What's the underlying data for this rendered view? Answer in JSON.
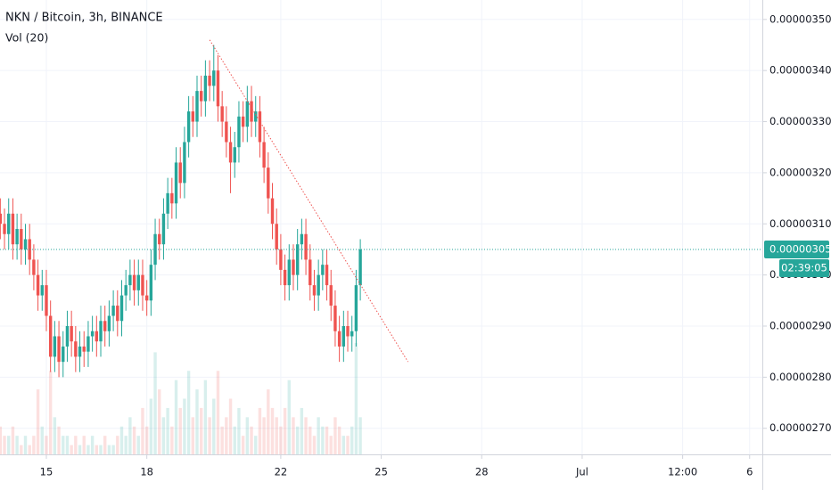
{
  "chart_data": {
    "type": "candlestick",
    "title": "NKN / Bitcoin, 3h, BINANCE",
    "volume_title": "Vol (20)",
    "up_color": "#26a69a",
    "down_color": "#ef5350",
    "x": [
      13.625,
      13.75,
      13.875,
      14,
      14.125,
      14.25,
      14.375,
      14.5,
      14.625,
      14.75,
      14.875,
      15,
      15.125,
      15.25,
      15.375,
      15.5,
      15.625,
      15.75,
      15.875,
      16,
      16.125,
      16.25,
      16.375,
      16.5,
      16.625,
      16.75,
      16.875,
      17,
      17.125,
      17.25,
      17.375,
      17.5,
      17.625,
      17.75,
      17.875,
      18,
      18.125,
      18.25,
      18.375,
      18.5,
      18.625,
      18.75,
      18.875,
      19,
      19.125,
      19.25,
      19.375,
      19.5,
      19.625,
      19.75,
      19.875,
      20,
      20.125,
      20.25,
      20.375,
      20.5,
      20.625,
      20.75,
      20.875,
      21,
      21.125,
      21.25,
      21.375,
      21.5,
      21.625,
      21.75,
      21.875,
      22,
      22.125,
      22.25,
      22.375,
      22.5,
      22.625,
      22.75,
      22.875,
      23,
      23.125,
      23.25,
      23.375,
      23.5,
      23.625,
      23.75,
      23.875,
      24,
      24.125,
      24.25,
      24.375
    ],
    "open": [
      3.12e-06,
      3.1e-06,
      3.08e-06,
      3.12e-06,
      3.06e-06,
      3.09e-06,
      3.05e-06,
      3.07e-06,
      3.03e-06,
      3e-06,
      2.96e-06,
      2.98e-06,
      2.92e-06,
      2.84e-06,
      2.88e-06,
      2.83e-06,
      2.86e-06,
      2.9e-06,
      2.87e-06,
      2.84e-06,
      2.86e-06,
      2.85e-06,
      2.88e-06,
      2.89e-06,
      2.87e-06,
      2.91e-06,
      2.89e-06,
      2.92e-06,
      2.94e-06,
      2.91e-06,
      2.96e-06,
      2.98e-06,
      3e-06,
      2.97e-06,
      3e-06,
      2.96e-06,
      2.95e-06,
      3.02e-06,
      3.08e-06,
      3.06e-06,
      3.12e-06,
      3.16e-06,
      3.14e-06,
      3.22e-06,
      3.18e-06,
      3.26e-06,
      3.32e-06,
      3.3e-06,
      3.36e-06,
      3.34e-06,
      3.39e-06,
      3.37e-06,
      3.4e-06,
      3.33e-06,
      3.3e-06,
      3.26e-06,
      3.22e-06,
      3.25e-06,
      3.31e-06,
      3.29e-06,
      3.34e-06,
      3.3e-06,
      3.32e-06,
      3.26e-06,
      3.21e-06,
      3.15e-06,
      3.1e-06,
      3.05e-06,
      3.01e-06,
      2.98e-06,
      3.03e-06,
      3e-06,
      3.06e-06,
      3.08e-06,
      3.03e-06,
      2.98e-06,
      2.96e-06,
      3e-06,
      3.02e-06,
      2.98e-06,
      2.94e-06,
      2.89e-06,
      2.86e-06,
      2.9e-06,
      2.88e-06,
      2.89e-06,
      2.98e-06
    ],
    "high": [
      3.15e-06,
      3.13e-06,
      3.15e-06,
      3.15e-06,
      3.12e-06,
      3.12e-06,
      3.1e-06,
      3.1e-06,
      3.06e-06,
      3.03e-06,
      3.01e-06,
      3.01e-06,
      2.95e-06,
      2.91e-06,
      2.91e-06,
      2.89e-06,
      2.93e-06,
      2.93e-06,
      2.9e-06,
      2.89e-06,
      2.89e-06,
      2.91e-06,
      2.92e-06,
      2.92e-06,
      2.94e-06,
      2.94e-06,
      2.95e-06,
      2.97e-06,
      2.97e-06,
      2.99e-06,
      3.01e-06,
      3.03e-06,
      3.03e-06,
      3.03e-06,
      3.03e-06,
      2.99e-06,
      3.05e-06,
      3.11e-06,
      3.11e-06,
      3.15e-06,
      3.19e-06,
      3.19e-06,
      3.25e-06,
      3.25e-06,
      3.29e-06,
      3.35e-06,
      3.35e-06,
      3.39e-06,
      3.39e-06,
      3.42e-06,
      3.42e-06,
      3.45e-06,
      3.43e-06,
      3.36e-06,
      3.33e-06,
      3.29e-06,
      3.28e-06,
      3.34e-06,
      3.34e-06,
      3.37e-06,
      3.37e-06,
      3.35e-06,
      3.35e-06,
      3.29e-06,
      3.24e-06,
      3.18e-06,
      3.13e-06,
      3.08e-06,
      3.04e-06,
      3.06e-06,
      3.06e-06,
      3.09e-06,
      3.11e-06,
      3.11e-06,
      3.06e-06,
      3.01e-06,
      3.03e-06,
      3.05e-06,
      3.05e-06,
      3.01e-06,
      2.97e-06,
      2.92e-06,
      2.93e-06,
      2.93e-06,
      2.92e-06,
      3.01e-06,
      3.07e-06
    ],
    "low": [
      3.07e-06,
      3.05e-06,
      3.05e-06,
      3.03e-06,
      3.03e-06,
      3.02e-06,
      3.02e-06,
      3e-06,
      2.97e-06,
      2.93e-06,
      2.93e-06,
      2.89e-06,
      2.81e-06,
      2.81e-06,
      2.8e-06,
      2.8e-06,
      2.83e-06,
      2.84e-06,
      2.81e-06,
      2.81e-06,
      2.82e-06,
      2.82e-06,
      2.85e-06,
      2.84e-06,
      2.84e-06,
      2.86e-06,
      2.86e-06,
      2.89e-06,
      2.88e-06,
      2.88e-06,
      2.93e-06,
      2.95e-06,
      2.94e-06,
      2.94e-06,
      2.93e-06,
      2.92e-06,
      2.92e-06,
      2.99e-06,
      3.03e-06,
      3.03e-06,
      3.09e-06,
      3.11e-06,
      3.11e-06,
      3.15e-06,
      3.15e-06,
      3.23e-06,
      3.27e-06,
      3.27e-06,
      3.31e-06,
      3.31e-06,
      3.34e-06,
      3.34e-06,
      3.3e-06,
      3.27e-06,
      3.23e-06,
      3.16e-06,
      3.19e-06,
      3.22e-06,
      3.26e-06,
      3.26e-06,
      3.27e-06,
      3.27e-06,
      3.23e-06,
      3.18e-06,
      3.12e-06,
      3.07e-06,
      3.02e-06,
      2.98e-06,
      2.95e-06,
      2.95e-06,
      2.97e-06,
      2.97e-06,
      3.03e-06,
      3e-06,
      2.95e-06,
      2.93e-06,
      2.93e-06,
      2.97e-06,
      2.95e-06,
      2.91e-06,
      2.86e-06,
      2.83e-06,
      2.83e-06,
      2.85e-06,
      2.85e-06,
      2.86e-06,
      2.95e-06
    ],
    "close": [
      3.1e-06,
      3.08e-06,
      3.12e-06,
      3.06e-06,
      3.09e-06,
      3.05e-06,
      3.07e-06,
      3.03e-06,
      3e-06,
      2.96e-06,
      2.98e-06,
      2.92e-06,
      2.84e-06,
      2.88e-06,
      2.83e-06,
      2.86e-06,
      2.9e-06,
      2.87e-06,
      2.84e-06,
      2.86e-06,
      2.85e-06,
      2.88e-06,
      2.89e-06,
      2.87e-06,
      2.91e-06,
      2.89e-06,
      2.92e-06,
      2.94e-06,
      2.91e-06,
      2.96e-06,
      2.98e-06,
      3e-06,
      2.97e-06,
      3e-06,
      2.96e-06,
      2.95e-06,
      3.02e-06,
      3.08e-06,
      3.06e-06,
      3.12e-06,
      3.16e-06,
      3.14e-06,
      3.22e-06,
      3.18e-06,
      3.26e-06,
      3.32e-06,
      3.3e-06,
      3.36e-06,
      3.34e-06,
      3.39e-06,
      3.37e-06,
      3.4e-06,
      3.33e-06,
      3.3e-06,
      3.26e-06,
      3.22e-06,
      3.25e-06,
      3.31e-06,
      3.29e-06,
      3.34e-06,
      3.3e-06,
      3.32e-06,
      3.26e-06,
      3.21e-06,
      3.15e-06,
      3.1e-06,
      3.05e-06,
      3.01e-06,
      2.98e-06,
      3.03e-06,
      3e-06,
      3.06e-06,
      3.08e-06,
      3.03e-06,
      2.98e-06,
      2.96e-06,
      3e-06,
      3.02e-06,
      2.98e-06,
      2.94e-06,
      2.89e-06,
      2.86e-06,
      2.9e-06,
      2.88e-06,
      2.89e-06,
      2.98e-06,
      3.05e-06
    ],
    "volume": [
      3,
      2,
      2,
      3,
      2,
      1,
      2,
      1,
      2,
      7,
      3,
      2,
      9,
      4,
      3,
      2,
      2,
      1,
      2,
      1,
      2,
      1,
      2,
      1,
      1,
      2,
      1,
      1,
      2,
      3,
      2,
      4,
      3,
      2,
      5,
      3,
      6,
      11,
      7,
      4,
      5,
      3,
      8,
      5,
      6,
      9,
      4,
      7,
      5,
      8,
      4,
      6,
      9,
      3,
      4,
      6,
      3,
      5,
      2,
      4,
      3,
      2,
      5,
      4,
      7,
      5,
      4,
      3,
      5,
      8,
      4,
      3,
      5,
      4,
      3,
      2,
      4,
      3,
      3,
      2,
      4,
      3,
      2,
      2,
      3,
      12,
      4
    ],
    "trendline": {
      "color": "#ef5350",
      "x": [
        19.875,
        25.8
      ],
      "y": [
        3.46e-06,
        2.83e-06
      ]
    },
    "last_price": {
      "value": 3.05e-06,
      "label": "0.00000305"
    },
    "countdown": "02:39:05",
    "xlim": [
      13.616,
      36.38
    ],
    "xticks": [
      15,
      18,
      22,
      25,
      28,
      {
        "value": 31,
        "label": "Jul"
      },
      {
        "value": 34,
        "label": "12:00"
      },
      {
        "value": 36,
        "label": "6"
      }
    ],
    "ylim": [
      2.649e-06,
      3.538e-06
    ],
    "yticks": [
      {
        "value": 2.7e-06,
        "label": "0.00000270"
      },
      {
        "value": 2.8e-06,
        "label": "0.00000280"
      },
      {
        "value": 2.9e-06,
        "label": "0.00000290"
      },
      {
        "value": 3e-06,
        "label": "0.00000300"
      },
      {
        "value": 3.1e-06,
        "label": "0.00000310"
      },
      {
        "value": 3.2e-06,
        "label": "0.00000320"
      },
      {
        "value": 3.3e-06,
        "label": "0.00000330"
      },
      {
        "value": 3.4e-06,
        "label": "0.00000340"
      },
      {
        "value": 3.5e-06,
        "label": "0.00000350"
      }
    ],
    "grid": true
  }
}
